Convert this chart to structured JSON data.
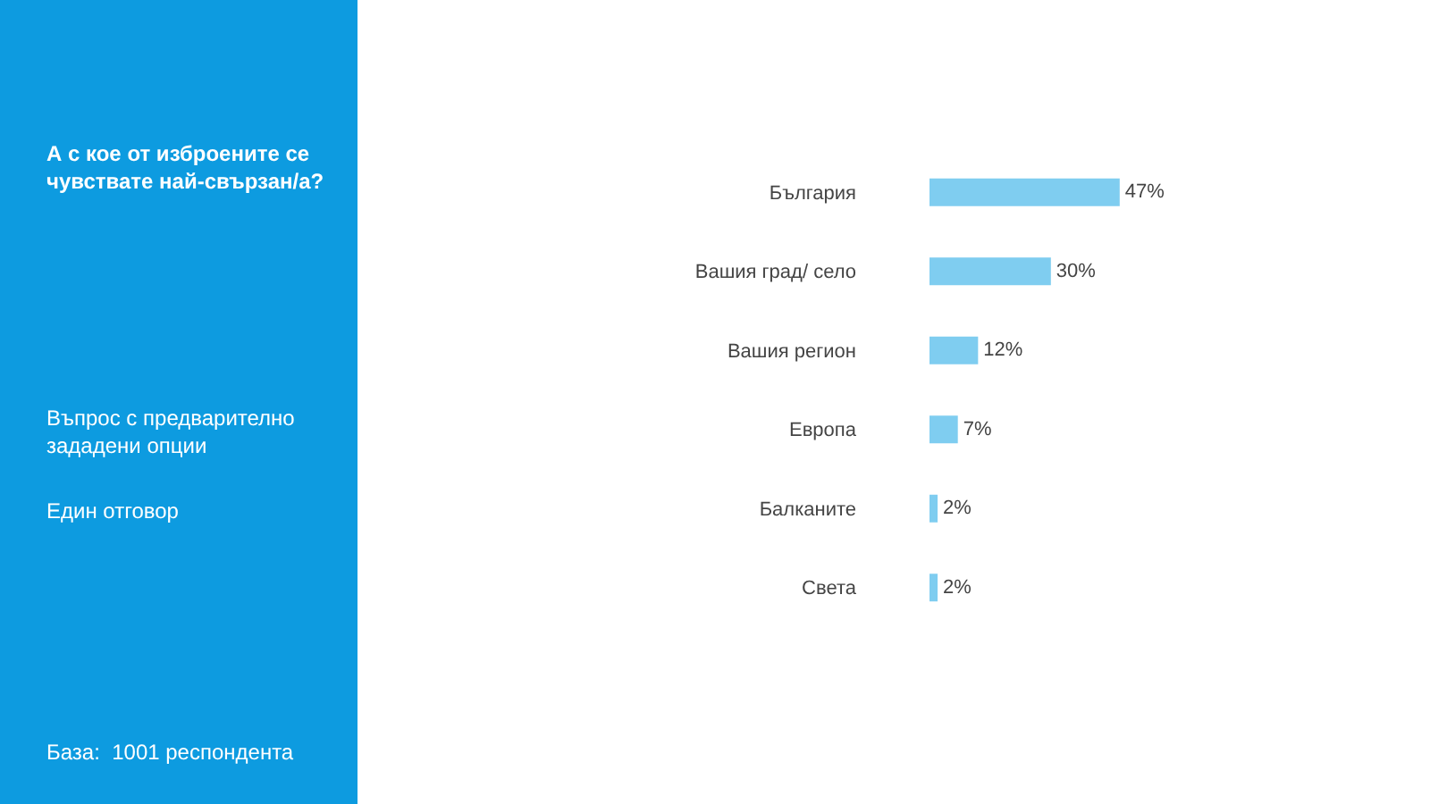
{
  "chart_data": {
    "type": "bar",
    "orientation": "horizontal",
    "title": "А с кое от изброените се чувствате най-свързан/а?",
    "categories": [
      "България",
      "Вашия град/ село",
      "Вашия регион",
      "Европа",
      "Балканите",
      "Света"
    ],
    "values": [
      47,
      30,
      12,
      7,
      2,
      2
    ],
    "value_labels": [
      "47%",
      "30%",
      "12%",
      "7%",
      "2%",
      "2%"
    ],
    "color": "#7fcdf0",
    "annotations": [
      "Въпрос с предварително зададени опции",
      "Един отговор",
      "База:  1001 респондента"
    ]
  }
}
